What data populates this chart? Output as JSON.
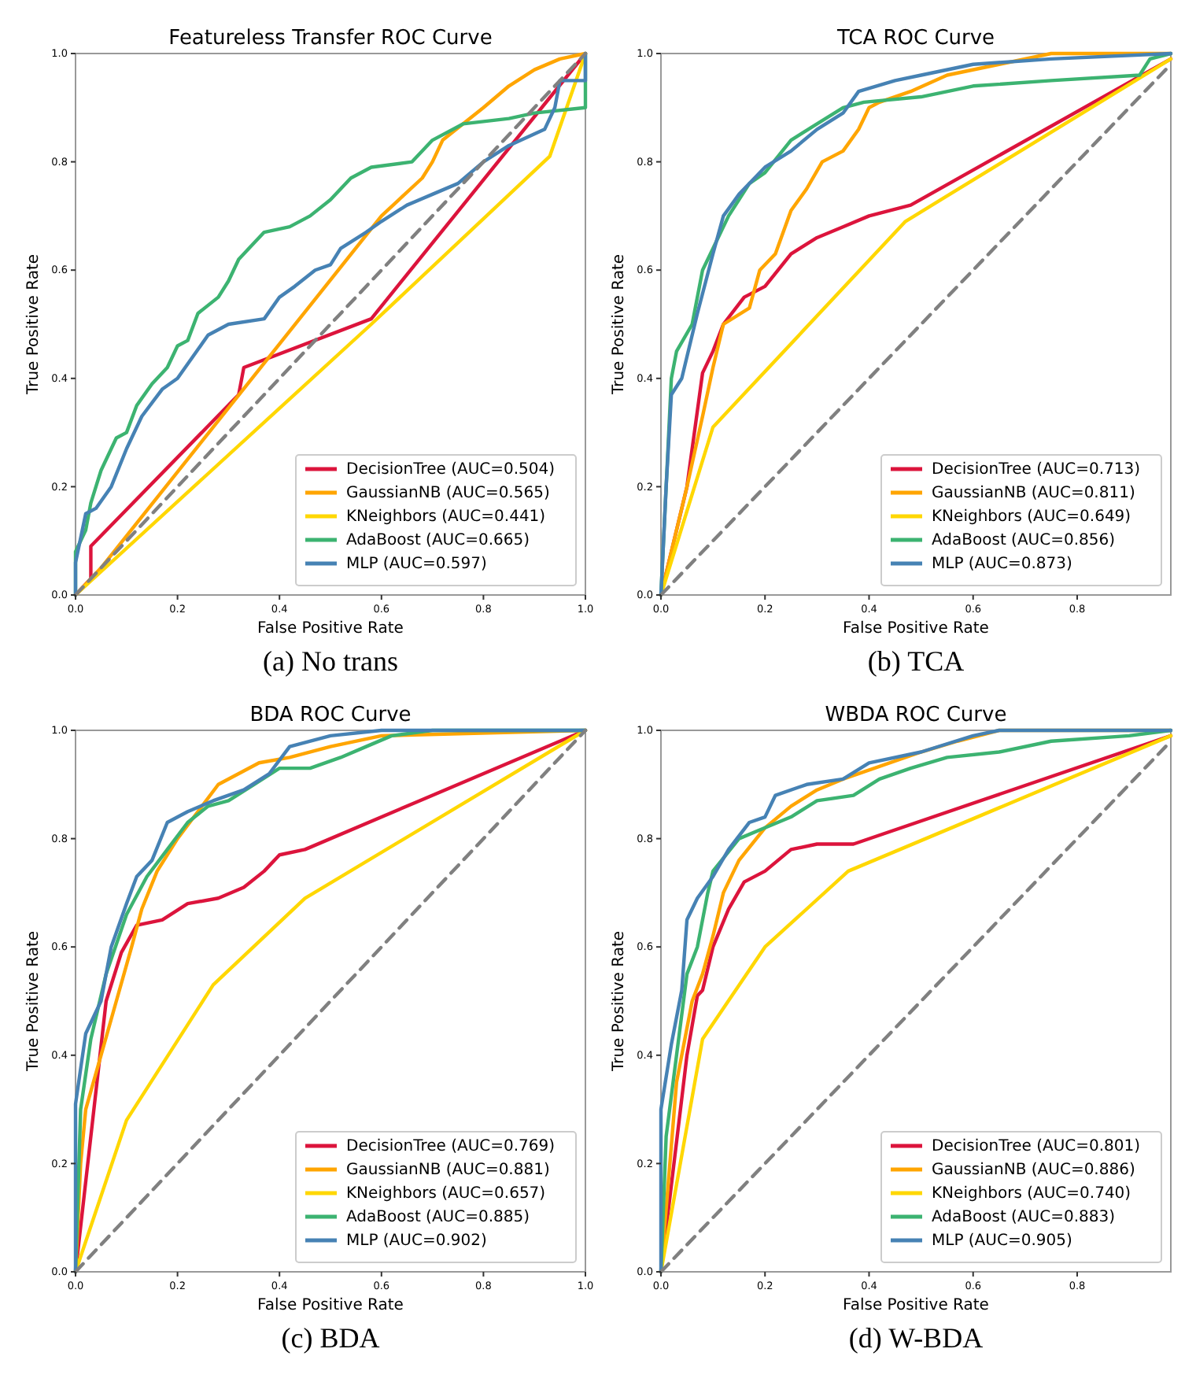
{
  "chart_data": [
    {
      "type": "line",
      "title": "Featureless Transfer ROC Curve",
      "xlabel": "False Positive Rate",
      "ylabel": "True Positive Rate",
      "annotations": [
        "(a) No trans"
      ],
      "legend": "bottom right",
      "grid": false,
      "xlim": [
        0,
        1
      ],
      "ylim": [
        0,
        1
      ],
      "xticks": [
        {
          "value": 0,
          "label": "0.0"
        },
        {
          "value": 0.2,
          "label": "0.2"
        },
        {
          "value": 0.4,
          "label": "0.4"
        },
        {
          "value": 0.6,
          "label": "0.6"
        },
        {
          "value": 0.8,
          "label": "0.8"
        },
        {
          "value": 1,
          "label": "1.0"
        }
      ],
      "yticks": [
        {
          "value": 0,
          "label": "0.0"
        },
        {
          "value": 0.2,
          "label": "0.2"
        },
        {
          "value": 0.4,
          "label": "0.4"
        },
        {
          "value": 0.6,
          "label": "0.6"
        },
        {
          "value": 0.8,
          "label": "0.8"
        },
        {
          "value": 1,
          "label": "1.0"
        }
      ],
      "series": [
        {
          "name": "DecisionTree (AUC=0.504)",
          "color": "#dc143c",
          "x": [
            0,
            0.03,
            0.03,
            0.32,
            0.33,
            0.58,
            1
          ],
          "values": [
            0,
            0.03,
            0.09,
            0.37,
            0.42,
            0.51,
            1
          ]
        },
        {
          "name": "GaussianNB (AUC=0.565)",
          "color": "#ffa500",
          "x": [
            0,
            0.05,
            0.6,
            0.68,
            0.7,
            0.72,
            0.8,
            0.85,
            0.9,
            0.95,
            1
          ],
          "values": [
            0,
            0.05,
            0.7,
            0.77,
            0.8,
            0.84,
            0.9,
            0.94,
            0.97,
            0.99,
            1
          ]
        },
        {
          "name": "KNeighbors (AUC=0.441)",
          "color": "#ffd700",
          "x": [
            0,
            0.58,
            0.93,
            1
          ],
          "values": [
            0,
            0.5,
            0.81,
            1
          ]
        },
        {
          "name": "AdaBoost (AUC=0.665)",
          "color": "#3cb371",
          "x": [
            0,
            0,
            0.02,
            0.03,
            0.04,
            0.05,
            0.08,
            0.1,
            0.12,
            0.15,
            0.18,
            0.2,
            0.22,
            0.24,
            0.28,
            0.3,
            0.32,
            0.35,
            0.37,
            0.42,
            0.46,
            0.5,
            0.54,
            0.58,
            0.66,
            0.7,
            0.76,
            0.85,
            0.9,
            1,
            1
          ],
          "values": [
            0,
            0.08,
            0.12,
            0.17,
            0.2,
            0.23,
            0.29,
            0.3,
            0.35,
            0.39,
            0.42,
            0.46,
            0.47,
            0.52,
            0.55,
            0.58,
            0.62,
            0.65,
            0.67,
            0.68,
            0.7,
            0.73,
            0.77,
            0.79,
            0.8,
            0.84,
            0.87,
            0.88,
            0.89,
            0.9,
            1
          ]
        },
        {
          "name": "MLP (AUC=0.597)",
          "color": "#4682b4",
          "x": [
            0,
            0,
            0.02,
            0.04,
            0.07,
            0.1,
            0.13,
            0.17,
            0.2,
            0.23,
            0.26,
            0.3,
            0.37,
            0.4,
            0.43,
            0.47,
            0.5,
            0.52,
            0.57,
            0.6,
            0.65,
            0.7,
            0.75,
            0.8,
            0.85,
            0.92,
            0.94,
            0.95,
            1,
            1
          ],
          "values": [
            0,
            0.06,
            0.15,
            0.16,
            0.2,
            0.27,
            0.33,
            0.38,
            0.4,
            0.44,
            0.48,
            0.5,
            0.51,
            0.55,
            0.57,
            0.6,
            0.61,
            0.64,
            0.67,
            0.69,
            0.72,
            0.74,
            0.76,
            0.8,
            0.83,
            0.86,
            0.9,
            0.95,
            0.95,
            1
          ]
        },
        {
          "type": "line",
          "line_style": "dashed",
          "color": "#808080",
          "x": [
            0,
            1
          ],
          "values": [
            0,
            1
          ]
        }
      ]
    },
    {
      "type": "line",
      "title": "TCA ROC Curve",
      "xlabel": "False Positive Rate",
      "ylabel": "True Positive Rate",
      "annotations": [
        "(b) TCA"
      ],
      "legend": "bottom right",
      "grid": false,
      "xlim": [
        0,
        0.98
      ],
      "ylim": [
        0,
        1
      ],
      "xticks": [
        {
          "value": 0,
          "label": "0.0"
        },
        {
          "value": 0.2,
          "label": "0.2"
        },
        {
          "value": 0.4,
          "label": "0.4"
        },
        {
          "value": 0.6,
          "label": "0.6"
        },
        {
          "value": 0.8,
          "label": "0.8"
        }
      ],
      "yticks": [
        {
          "value": 0,
          "label": "0.0"
        },
        {
          "value": 0.2,
          "label": "0.2"
        },
        {
          "value": 0.4,
          "label": "0.4"
        },
        {
          "value": 0.6,
          "label": "0.6"
        },
        {
          "value": 0.8,
          "label": "0.8"
        },
        {
          "value": 1,
          "label": "1.0"
        }
      ],
      "series": [
        {
          "name": "DecisionTree (AUC=0.713)",
          "color": "#dc143c",
          "x": [
            0,
            0.05,
            0.08,
            0.1,
            0.12,
            0.16,
            0.2,
            0.25,
            0.3,
            0.35,
            0.4,
            0.48,
            0.98
          ],
          "values": [
            0,
            0.2,
            0.41,
            0.45,
            0.5,
            0.55,
            0.57,
            0.63,
            0.66,
            0.68,
            0.7,
            0.72,
            0.99
          ]
        },
        {
          "name": "GaussianNB (AUC=0.811)",
          "color": "#ffa500",
          "x": [
            0,
            0.05,
            0.08,
            0.1,
            0.12,
            0.17,
            0.19,
            0.22,
            0.25,
            0.28,
            0.31,
            0.35,
            0.38,
            0.4,
            0.42,
            0.48,
            0.55,
            0.65,
            0.75,
            0.98
          ],
          "values": [
            0,
            0.2,
            0.33,
            0.42,
            0.5,
            0.53,
            0.6,
            0.63,
            0.71,
            0.75,
            0.8,
            0.82,
            0.86,
            0.9,
            0.91,
            0.93,
            0.96,
            0.98,
            1,
            1
          ]
        },
        {
          "name": "KNeighbors (AUC=0.649)",
          "color": "#ffd700",
          "x": [
            0,
            0.1,
            0.47,
            0.98
          ],
          "values": [
            0,
            0.31,
            0.69,
            0.99
          ]
        },
        {
          "name": "AdaBoost (AUC=0.856)",
          "color": "#3cb371",
          "x": [
            0,
            0.01,
            0.02,
            0.03,
            0.06,
            0.08,
            0.1,
            0.13,
            0.17,
            0.2,
            0.25,
            0.3,
            0.35,
            0.39,
            0.5,
            0.6,
            0.75,
            0.92,
            0.94,
            0.98
          ],
          "values": [
            0,
            0.2,
            0.4,
            0.45,
            0.5,
            0.6,
            0.64,
            0.7,
            0.76,
            0.78,
            0.84,
            0.87,
            0.9,
            0.91,
            0.92,
            0.94,
            0.95,
            0.96,
            0.99,
            1
          ]
        },
        {
          "name": "MLP (AUC=0.873)",
          "color": "#4682b4",
          "x": [
            0,
            0.01,
            0.02,
            0.04,
            0.07,
            0.1,
            0.12,
            0.15,
            0.2,
            0.25,
            0.3,
            0.35,
            0.38,
            0.45,
            0.5,
            0.6,
            0.75,
            0.98
          ],
          "values": [
            0,
            0.2,
            0.37,
            0.4,
            0.52,
            0.63,
            0.7,
            0.74,
            0.79,
            0.82,
            0.86,
            0.89,
            0.93,
            0.95,
            0.96,
            0.98,
            0.99,
            1
          ]
        },
        {
          "type": "line",
          "line_style": "dashed",
          "color": "#808080",
          "x": [
            0,
            0.98
          ],
          "values": [
            0,
            0.98
          ]
        }
      ]
    },
    {
      "type": "line",
      "title": "BDA ROC Curve",
      "xlabel": "False Positive Rate",
      "ylabel": "True Positive Rate",
      "annotations": [
        "(c) BDA"
      ],
      "legend": "bottom right",
      "grid": false,
      "xlim": [
        0,
        1
      ],
      "ylim": [
        0,
        1
      ],
      "xticks": [
        {
          "value": 0,
          "label": "0.0"
        },
        {
          "value": 0.2,
          "label": "0.2"
        },
        {
          "value": 0.4,
          "label": "0.4"
        },
        {
          "value": 0.6,
          "label": "0.6"
        },
        {
          "value": 0.8,
          "label": "0.8"
        },
        {
          "value": 1,
          "label": "1.0"
        }
      ],
      "yticks": [
        {
          "value": 0,
          "label": "0.0"
        },
        {
          "value": 0.2,
          "label": "0.2"
        },
        {
          "value": 0.4,
          "label": "0.4"
        },
        {
          "value": 0.6,
          "label": "0.6"
        },
        {
          "value": 0.8,
          "label": "0.8"
        },
        {
          "value": 1,
          "label": "1.0"
        }
      ],
      "series": [
        {
          "name": "DecisionTree (AUC=0.769)",
          "color": "#dc143c",
          "x": [
            0,
            0.06,
            0.09,
            0.12,
            0.17,
            0.22,
            0.28,
            0.33,
            0.37,
            0.4,
            0.45,
            1
          ],
          "values": [
            0,
            0.5,
            0.59,
            0.64,
            0.65,
            0.68,
            0.69,
            0.71,
            0.74,
            0.77,
            0.78,
            1
          ]
        },
        {
          "name": "GaussianNB (AUC=0.881)",
          "color": "#ffa500",
          "x": [
            0,
            0.01,
            0.02,
            0.05,
            0.08,
            0.11,
            0.13,
            0.16,
            0.2,
            0.24,
            0.28,
            0.32,
            0.36,
            0.42,
            0.5,
            0.6,
            0.7,
            1
          ],
          "values": [
            0,
            0.2,
            0.3,
            0.4,
            0.5,
            0.6,
            0.67,
            0.74,
            0.8,
            0.85,
            0.9,
            0.92,
            0.94,
            0.95,
            0.97,
            0.99,
            null,
            1
          ]
        },
        {
          "name": "KNeighbors (AUC=0.657)",
          "color": "#ffd700",
          "x": [
            0,
            0.1,
            0.27,
            0.45,
            1
          ],
          "values": [
            0,
            0.28,
            0.53,
            0.69,
            1
          ]
        },
        {
          "name": "AdaBoost (AUC=0.885)",
          "color": "#3cb371",
          "x": [
            0,
            0.01,
            0.03,
            0.06,
            0.1,
            0.14,
            0.18,
            0.22,
            0.26,
            0.3,
            0.35,
            0.4,
            0.46,
            0.52,
            0.57,
            0.62,
            0.7,
            0.88,
            1
          ],
          "values": [
            0,
            0.3,
            0.43,
            0.55,
            0.66,
            0.73,
            0.78,
            0.83,
            0.86,
            0.87,
            0.9,
            0.93,
            0.93,
            0.95,
            0.97,
            0.99,
            1,
            1,
            1
          ]
        },
        {
          "name": "MLP (AUC=0.902)",
          "color": "#4682b4",
          "x": [
            0,
            0,
            0.02,
            0.05,
            0.07,
            0.1,
            0.12,
            0.15,
            0.18,
            0.22,
            0.27,
            0.33,
            0.38,
            0.42,
            0.5,
            0.6,
            1
          ],
          "values": [
            0,
            0.31,
            0.44,
            0.5,
            0.6,
            0.68,
            0.73,
            0.76,
            0.83,
            0.85,
            0.87,
            0.89,
            0.92,
            0.97,
            0.99,
            1,
            1
          ]
        },
        {
          "type": "line",
          "line_style": "dashed",
          "color": "#808080",
          "x": [
            0,
            1
          ],
          "values": [
            0,
            1
          ]
        }
      ]
    },
    {
      "type": "line",
      "title": "WBDA ROC Curve",
      "xlabel": "False Positive Rate",
      "ylabel": "True Positive Rate",
      "annotations": [
        "(d) W-BDA"
      ],
      "legend": "bottom right",
      "grid": false,
      "xlim": [
        0,
        0.98
      ],
      "ylim": [
        0,
        1
      ],
      "xticks": [
        {
          "value": 0,
          "label": "0.0"
        },
        {
          "value": 0.2,
          "label": "0.2"
        },
        {
          "value": 0.4,
          "label": "0.4"
        },
        {
          "value": 0.6,
          "label": "0.6"
        },
        {
          "value": 0.8,
          "label": "0.8"
        }
      ],
      "yticks": [
        {
          "value": 0,
          "label": "0.0"
        },
        {
          "value": 0.2,
          "label": "0.2"
        },
        {
          "value": 0.4,
          "label": "0.4"
        },
        {
          "value": 0.6,
          "label": "0.6"
        },
        {
          "value": 0.8,
          "label": "0.8"
        },
        {
          "value": 1,
          "label": "1.0"
        }
      ],
      "series": [
        {
          "name": "DecisionTree (AUC=0.801)",
          "color": "#dc143c",
          "x": [
            0,
            0.05,
            0.07,
            0.08,
            0.1,
            0.13,
            0.16,
            0.2,
            0.25,
            0.3,
            0.37,
            0.98
          ],
          "values": [
            0,
            0.4,
            0.51,
            0.52,
            0.6,
            0.67,
            0.72,
            0.74,
            0.78,
            0.79,
            0.79,
            0.99
          ]
        },
        {
          "name": "GaussianNB (AUC=0.886)",
          "color": "#ffa500",
          "x": [
            0,
            0.03,
            0.06,
            0.08,
            0.1,
            0.12,
            0.15,
            0.2,
            0.25,
            0.3,
            0.35,
            0.4,
            0.5,
            0.57,
            0.65,
            0.98
          ],
          "values": [
            0,
            0.35,
            0.5,
            0.55,
            0.62,
            0.7,
            0.76,
            0.82,
            0.86,
            0.89,
            0.91,
            null,
            0.96,
            0.98,
            1,
            1
          ]
        },
        {
          "name": "KNeighbors (AUC=0.740)",
          "color": "#ffd700",
          "x": [
            0,
            0.08,
            0.2,
            0.36,
            0.98
          ],
          "values": [
            0,
            0.43,
            0.6,
            0.74,
            0.99
          ]
        },
        {
          "name": "AdaBoost (AUC=0.883)",
          "color": "#3cb371",
          "x": [
            0,
            0.01,
            0.03,
            0.05,
            0.07,
            0.09,
            0.1,
            0.15,
            0.2,
            0.25,
            0.3,
            0.37,
            0.42,
            0.48,
            0.55,
            0.65,
            0.75,
            0.9,
            0.98
          ],
          "values": [
            0,
            0.25,
            0.4,
            0.55,
            0.6,
            0.7,
            0.74,
            0.8,
            0.82,
            0.84,
            0.87,
            0.88,
            0.91,
            0.93,
            0.95,
            0.96,
            0.98,
            0.99,
            1
          ]
        },
        {
          "name": "MLP (AUC=0.905)",
          "color": "#4682b4",
          "x": [
            0,
            0,
            0.02,
            0.04,
            0.05,
            0.07,
            0.1,
            0.13,
            0.17,
            0.2,
            0.22,
            0.28,
            0.35,
            0.4,
            0.5,
            0.6,
            0.65,
            0.98
          ],
          "values": [
            0,
            0.3,
            0.42,
            0.52,
            0.65,
            0.69,
            0.73,
            0.78,
            0.83,
            0.84,
            0.88,
            0.9,
            0.91,
            0.94,
            0.96,
            0.99,
            1,
            1
          ]
        },
        {
          "type": "line",
          "line_style": "dashed",
          "color": "#808080",
          "x": [
            0,
            0.98
          ],
          "values": [
            0,
            0.98
          ]
        }
      ]
    }
  ]
}
